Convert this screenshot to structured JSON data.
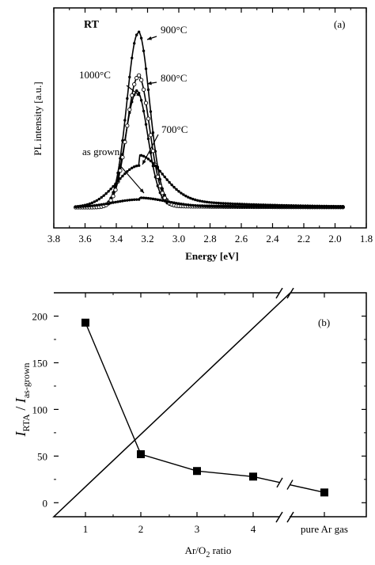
{
  "chart_data": [
    {
      "type": "line",
      "panel_label": "(a)",
      "annotation": "RT",
      "xlabel": "Energy [eV]",
      "ylabel": "PL intensity [a.u.]",
      "xlim": [
        3.8,
        1.8
      ],
      "x_reversed": true,
      "xticks": [
        "3.8",
        "3.6",
        "3.4",
        "3.2",
        "3.0",
        "2.8",
        "2.6",
        "2.4",
        "2.2",
        "2.0",
        "1.8"
      ],
      "y_tick_labels_shown": false,
      "series": [
        {
          "name": "900°C",
          "peak_eV": 3.26,
          "peak": 1.0,
          "fwhm_eV": 0.17,
          "tail": 0.01,
          "marker": "dot"
        },
        {
          "name": "800°C",
          "peak_eV": 3.27,
          "peak": 0.66,
          "fwhm_eV": 0.17,
          "tail": 0.01,
          "marker": "dot"
        },
        {
          "name": "1000°C",
          "peak_eV": 3.26,
          "peak": 0.75,
          "fwhm_eV": 0.17,
          "tail": 0.01,
          "marker": "open-circle"
        },
        {
          "name": "700°C",
          "peak_eV": 3.25,
          "peak": 0.24,
          "fwhm_eV": 0.34,
          "tail": 0.06,
          "marker": "dot"
        },
        {
          "name": "as grown",
          "peak_eV": 3.25,
          "peak": 0.045,
          "fwhm_eV": 0.4,
          "tail": 0.01,
          "marker": "dot"
        }
      ]
    },
    {
      "type": "line",
      "panel_label": "(b)",
      "xlabel": "Ar/O2 ratio",
      "ylabel": "I_RTA / I_as-grown",
      "ylim": [
        -15,
        225
      ],
      "categories": [
        "1",
        "2",
        "3",
        "4",
        "pure Ar gas"
      ],
      "yticks": [
        "0",
        "50",
        "100",
        "150",
        "200"
      ],
      "values": [
        193,
        52,
        34,
        28,
        11
      ],
      "marker": "filled-square",
      "axis_break": true
    }
  ]
}
